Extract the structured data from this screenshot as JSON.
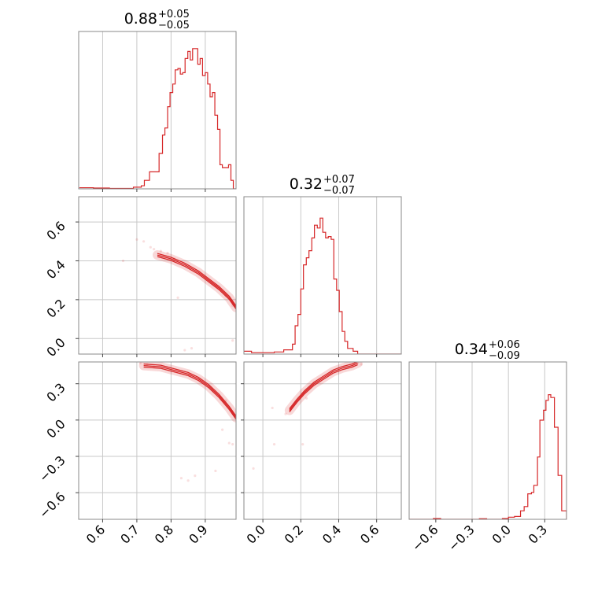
{
  "chart_data": {
    "type": "corner",
    "color": "#d62728",
    "grid": true,
    "panels": {
      "hist_1": {
        "title": {
          "value": "0.88",
          "plus": "+0.05",
          "minus": "−0.05"
        },
        "xlim": [
          0.53,
          0.99
        ],
        "xticks": [
          0.6,
          0.7,
          0.8,
          0.9
        ],
        "bins": [
          {
            "x": 0.532,
            "h": 0.008
          },
          {
            "x": 0.573,
            "h": 0.006
          },
          {
            "x": 0.62,
            "h": 0.003
          },
          {
            "x": 0.69,
            "h": 0.012
          },
          {
            "x": 0.713,
            "h": 0.022
          },
          {
            "x": 0.722,
            "h": 0.06
          },
          {
            "x": 0.737,
            "h": 0.12
          },
          {
            "x": 0.758,
            "h": 0.12
          },
          {
            "x": 0.765,
            "h": 0.25
          },
          {
            "x": 0.775,
            "h": 0.38
          },
          {
            "x": 0.782,
            "h": 0.43
          },
          {
            "x": 0.79,
            "h": 0.58
          },
          {
            "x": 0.797,
            "h": 0.68
          },
          {
            "x": 0.805,
            "h": 0.74
          },
          {
            "x": 0.812,
            "h": 0.84
          },
          {
            "x": 0.82,
            "h": 0.85
          },
          {
            "x": 0.827,
            "h": 0.81
          },
          {
            "x": 0.834,
            "h": 0.82
          },
          {
            "x": 0.841,
            "h": 0.92
          },
          {
            "x": 0.849,
            "h": 0.97
          },
          {
            "x": 0.856,
            "h": 0.91
          },
          {
            "x": 0.863,
            "h": 0.99
          },
          {
            "x": 0.871,
            "h": 0.99
          },
          {
            "x": 0.878,
            "h": 0.88
          },
          {
            "x": 0.885,
            "h": 0.92
          },
          {
            "x": 0.892,
            "h": 0.8
          },
          {
            "x": 0.9,
            "h": 0.82
          },
          {
            "x": 0.907,
            "h": 0.74
          },
          {
            "x": 0.914,
            "h": 0.65
          },
          {
            "x": 0.921,
            "h": 0.68
          },
          {
            "x": 0.928,
            "h": 0.52
          },
          {
            "x": 0.936,
            "h": 0.42
          },
          {
            "x": 0.943,
            "h": 0.17
          },
          {
            "x": 0.95,
            "h": 0.15
          },
          {
            "x": 0.968,
            "h": 0.17
          },
          {
            "x": 0.975,
            "h": 0.06
          },
          {
            "x": 0.982,
            "h": 0.0
          }
        ]
      },
      "hist_2": {
        "title": {
          "value": "0.32",
          "plus": "+0.07",
          "minus": "−0.07"
        },
        "xlim": [
          -0.1,
          0.73
        ],
        "xticks": [
          0.0,
          0.2,
          0.4,
          0.6
        ],
        "bins": [
          {
            "x": -0.1,
            "h": 0.02
          },
          {
            "x": -0.06,
            "h": 0.01
          },
          {
            "x": 0.06,
            "h": 0.015
          },
          {
            "x": 0.11,
            "h": 0.03
          },
          {
            "x": 0.156,
            "h": 0.07
          },
          {
            "x": 0.17,
            "h": 0.2
          },
          {
            "x": 0.185,
            "h": 0.28
          },
          {
            "x": 0.2,
            "h": 0.46
          },
          {
            "x": 0.214,
            "h": 0.63
          },
          {
            "x": 0.229,
            "h": 0.68
          },
          {
            "x": 0.243,
            "h": 0.73
          },
          {
            "x": 0.258,
            "h": 0.82
          },
          {
            "x": 0.272,
            "h": 0.91
          },
          {
            "x": 0.287,
            "h": 0.89
          },
          {
            "x": 0.302,
            "h": 0.96
          },
          {
            "x": 0.316,
            "h": 0.86
          },
          {
            "x": 0.331,
            "h": 0.82
          },
          {
            "x": 0.345,
            "h": 0.83
          },
          {
            "x": 0.36,
            "h": 0.81
          },
          {
            "x": 0.374,
            "h": 0.53
          },
          {
            "x": 0.389,
            "h": 0.45
          },
          {
            "x": 0.403,
            "h": 0.3
          },
          {
            "x": 0.418,
            "h": 0.16
          },
          {
            "x": 0.432,
            "h": 0.09
          },
          {
            "x": 0.447,
            "h": 0.04
          },
          {
            "x": 0.476,
            "h": 0.02
          },
          {
            "x": 0.5,
            "h": 0.0
          },
          {
            "x": 0.73,
            "h": 0.0
          }
        ]
      },
      "hist_3": {
        "title": {
          "value": "0.34",
          "plus": "+0.06",
          "minus": "−0.09"
        },
        "xlim": [
          -0.82,
          0.48
        ],
        "xticks": [
          -0.6,
          -0.3,
          0.0,
          0.3
        ],
        "bins": [
          {
            "x": -0.82,
            "h": 0.0
          },
          {
            "x": -0.62,
            "h": 0.006
          },
          {
            "x": -0.56,
            "h": 0.0
          },
          {
            "x": -0.24,
            "h": 0.004
          },
          {
            "x": -0.18,
            "h": 0.0
          },
          {
            "x": -0.05,
            "h": 0.006
          },
          {
            "x": 0.0,
            "h": 0.015
          },
          {
            "x": 0.05,
            "h": 0.02
          },
          {
            "x": 0.1,
            "h": 0.06
          },
          {
            "x": 0.13,
            "h": 0.09
          },
          {
            "x": 0.16,
            "h": 0.18
          },
          {
            "x": 0.19,
            "h": 0.19
          },
          {
            "x": 0.21,
            "h": 0.24
          },
          {
            "x": 0.24,
            "h": 0.44
          },
          {
            "x": 0.26,
            "h": 0.7
          },
          {
            "x": 0.29,
            "h": 0.77
          },
          {
            "x": 0.31,
            "h": 0.84
          },
          {
            "x": 0.33,
            "h": 0.88
          },
          {
            "x": 0.35,
            "h": 0.86
          },
          {
            "x": 0.38,
            "h": 0.65
          },
          {
            "x": 0.41,
            "h": 0.31
          },
          {
            "x": 0.44,
            "h": 0.06
          },
          {
            "x": 0.48,
            "h": 0.0
          }
        ]
      },
      "scatter_2_1": {
        "xlim": [
          0.53,
          0.99
        ],
        "ylim": [
          -0.08,
          0.73
        ],
        "yticks": [
          0.0,
          0.2,
          0.4,
          0.6
        ],
        "contour_path": [
          [
            0.76,
            0.43
          ],
          [
            0.8,
            0.41
          ],
          [
            0.84,
            0.38
          ],
          [
            0.88,
            0.34
          ],
          [
            0.91,
            0.3
          ],
          [
            0.94,
            0.26
          ],
          [
            0.97,
            0.21
          ],
          [
            0.99,
            0.16
          ]
        ],
        "points": [
          [
            0.7,
            0.51
          ],
          [
            0.72,
            0.5
          ],
          [
            0.74,
            0.47
          ],
          [
            0.75,
            0.46
          ],
          [
            0.77,
            0.45
          ],
          [
            0.79,
            0.44
          ],
          [
            0.81,
            0.41
          ],
          [
            0.93,
            0.27
          ],
          [
            0.96,
            0.22
          ],
          [
            0.98,
            0.17
          ],
          [
            0.84,
            -0.06
          ],
          [
            0.86,
            -0.05
          ],
          [
            0.82,
            0.21
          ],
          [
            0.66,
            0.4
          ],
          [
            0.98,
            -0.01
          ]
        ]
      },
      "scatter_3_1": {
        "xlim": [
          0.53,
          0.99
        ],
        "ylim": [
          -0.82,
          0.48
        ],
        "yticks": [
          -0.6,
          -0.3,
          0.0,
          0.3
        ],
        "contour_path": [
          [
            0.72,
            0.45
          ],
          [
            0.77,
            0.44
          ],
          [
            0.81,
            0.41
          ],
          [
            0.85,
            0.38
          ],
          [
            0.88,
            0.34
          ],
          [
            0.91,
            0.28
          ],
          [
            0.94,
            0.2
          ],
          [
            0.97,
            0.1
          ],
          [
            0.99,
            0.02
          ]
        ],
        "points": [
          [
            0.71,
            0.47
          ],
          [
            0.73,
            0.46
          ],
          [
            0.75,
            0.44
          ],
          [
            0.96,
            0.16
          ],
          [
            0.98,
            0.06
          ],
          [
            0.83,
            -0.48
          ],
          [
            0.85,
            -0.5
          ],
          [
            0.87,
            -0.46
          ],
          [
            0.93,
            -0.42
          ],
          [
            0.97,
            -0.19
          ],
          [
            0.98,
            -0.2
          ],
          [
            0.95,
            -0.08
          ]
        ]
      },
      "scatter_3_2": {
        "xlim": [
          -0.1,
          0.73
        ],
        "ylim": [
          -0.82,
          0.48
        ],
        "xticks": [
          0.0,
          0.2,
          0.4,
          0.6
        ],
        "contour_path": [
          [
            0.14,
            0.08
          ],
          [
            0.18,
            0.16
          ],
          [
            0.22,
            0.23
          ],
          [
            0.27,
            0.3
          ],
          [
            0.32,
            0.35
          ],
          [
            0.37,
            0.4
          ],
          [
            0.42,
            0.43
          ],
          [
            0.47,
            0.45
          ],
          [
            0.5,
            0.47
          ]
        ],
        "points": [
          [
            0.5,
            0.47
          ],
          [
            0.52,
            0.46
          ],
          [
            0.48,
            0.45
          ],
          [
            0.12,
            0.05
          ],
          [
            0.05,
            0.1
          ],
          [
            0.06,
            -0.2
          ],
          [
            -0.05,
            -0.4
          ],
          [
            0.21,
            -0.2
          ],
          [
            0.23,
            0.18
          ]
        ]
      }
    }
  }
}
